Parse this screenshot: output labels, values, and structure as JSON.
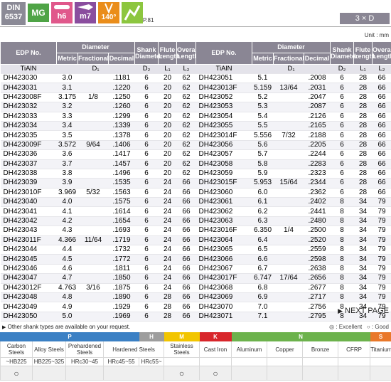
{
  "header": {
    "standard": [
      "DIN",
      "6537"
    ],
    "material_badge": "MG",
    "shank_tolerance": "h6",
    "hole_tolerance": "m7",
    "point_angle": "140°",
    "page_ref": "P.81",
    "length_ratio": "3 × D",
    "badge_colors": {
      "standard": "#8b8a96",
      "material": "#4fa446",
      "shank": "#e0588b",
      "hole": "#8a4d9e",
      "angle": "#ea8d1a",
      "icon": "#8cc63f"
    }
  },
  "unit": "Unit : mm",
  "table": {
    "columns": {
      "edp": "EDP No.",
      "diameter": "Diameter",
      "metric": "Metric",
      "fractional": "Fractional",
      "decimal": "Decimal",
      "shank": "Shank Diameter",
      "flute": "Flute Length",
      "overall": "Overall Length",
      "coating": "TiAlN",
      "d1": "D₁",
      "d2": "D₂",
      "l1": "L₁",
      "l2": "L₂"
    },
    "left_rows": [
      [
        "DH423030",
        "3.0",
        null,
        ".1181",
        "6",
        "20",
        "62"
      ],
      [
        "DH423031",
        "3.1",
        null,
        ".1220",
        "6",
        "20",
        "62"
      ],
      [
        "DH423008F",
        "3.175",
        "1/8",
        ".1250",
        "6",
        "20",
        "62"
      ],
      [
        "DH423032",
        "3.2",
        null,
        ".1260",
        "6",
        "20",
        "62"
      ],
      [
        "DH423033",
        "3.3",
        null,
        ".1299",
        "6",
        "20",
        "62"
      ],
      [
        "DH423034",
        "3.4",
        null,
        ".1339",
        "6",
        "20",
        "62"
      ],
      [
        "DH423035",
        "3.5",
        null,
        ".1378",
        "6",
        "20",
        "62"
      ],
      [
        "DH423009F",
        "3.572",
        "9/64",
        ".1406",
        "6",
        "20",
        "62"
      ],
      [
        "DH423036",
        "3.6",
        null,
        ".1417",
        "6",
        "20",
        "62"
      ],
      [
        "DH423037",
        "3.7",
        null,
        ".1457",
        "6",
        "20",
        "62"
      ],
      [
        "DH423038",
        "3.8",
        null,
        ".1496",
        "6",
        "20",
        "62"
      ],
      [
        "DH423039",
        "3.9",
        null,
        ".1535",
        "6",
        "24",
        "66"
      ],
      [
        "DH423010F",
        "3.969",
        "5/32",
        ".1563",
        "6",
        "24",
        "66"
      ],
      [
        "DH423040",
        "4.0",
        null,
        ".1575",
        "6",
        "24",
        "66"
      ],
      [
        "DH423041",
        "4.1",
        null,
        ".1614",
        "6",
        "24",
        "66"
      ],
      [
        "DH423042",
        "4.2",
        null,
        ".1654",
        "6",
        "24",
        "66"
      ],
      [
        "DH423043",
        "4.3",
        null,
        ".1693",
        "6",
        "24",
        "66"
      ],
      [
        "DH423011F",
        "4.366",
        "11/64",
        ".1719",
        "6",
        "24",
        "66"
      ],
      [
        "DH423044",
        "4.4",
        null,
        ".1732",
        "6",
        "24",
        "66"
      ],
      [
        "DH423045",
        "4.5",
        null,
        ".1772",
        "6",
        "24",
        "66"
      ],
      [
        "DH423046",
        "4.6",
        null,
        ".1811",
        "6",
        "24",
        "66"
      ],
      [
        "DH423047",
        "4.7",
        null,
        ".1850",
        "6",
        "24",
        "66"
      ],
      [
        "DH423012F",
        "4.763",
        "3/16",
        ".1875",
        "6",
        "24",
        "66"
      ],
      [
        "DH423048",
        "4.8",
        null,
        ".1890",
        "6",
        "28",
        "66"
      ],
      [
        "DH423049",
        "4.9",
        null,
        ".1929",
        "6",
        "28",
        "66"
      ],
      [
        "DH423050",
        "5.0",
        null,
        ".1969",
        "6",
        "28",
        "66"
      ]
    ],
    "right_rows": [
      [
        "DH423051",
        "5.1",
        null,
        ".2008",
        "6",
        "28",
        "66"
      ],
      [
        "DH423013F",
        "5.159",
        "13/64",
        ".2031",
        "6",
        "28",
        "66"
      ],
      [
        "DH423052",
        "5.2",
        null,
        ".2047",
        "6",
        "28",
        "66"
      ],
      [
        "DH423053",
        "5.3",
        null,
        ".2087",
        "6",
        "28",
        "66"
      ],
      [
        "DH423054",
        "5.4",
        null,
        ".2126",
        "6",
        "28",
        "66"
      ],
      [
        "DH423055",
        "5.5",
        null,
        ".2165",
        "6",
        "28",
        "66"
      ],
      [
        "DH423014F",
        "5.556",
        "7/32",
        ".2188",
        "6",
        "28",
        "66"
      ],
      [
        "DH423056",
        "5.6",
        null,
        ".2205",
        "6",
        "28",
        "66"
      ],
      [
        "DH423057",
        "5.7",
        null,
        ".2244",
        "6",
        "28",
        "66"
      ],
      [
        "DH423058",
        "5.8",
        null,
        ".2283",
        "6",
        "28",
        "66"
      ],
      [
        "DH423059",
        "5.9",
        null,
        ".2323",
        "6",
        "28",
        "66"
      ],
      [
        "DH423015F",
        "5.953",
        "15/64",
        ".2344",
        "6",
        "28",
        "66"
      ],
      [
        "DH423060",
        "6.0",
        null,
        ".2362",
        "6",
        "28",
        "66"
      ],
      [
        "DH423061",
        "6.1",
        null,
        ".2402",
        "8",
        "34",
        "79"
      ],
      [
        "DH423062",
        "6.2",
        null,
        ".2441",
        "8",
        "34",
        "79"
      ],
      [
        "DH423063",
        "6.3",
        null,
        ".2480",
        "8",
        "34",
        "79"
      ],
      [
        "DH423016F",
        "6.350",
        "1/4",
        ".2500",
        "8",
        "34",
        "79"
      ],
      [
        "DH423064",
        "6.4",
        null,
        ".2520",
        "8",
        "34",
        "79"
      ],
      [
        "DH423065",
        "6.5",
        null,
        ".2559",
        "8",
        "34",
        "79"
      ],
      [
        "DH423066",
        "6.6",
        null,
        ".2598",
        "8",
        "34",
        "79"
      ],
      [
        "DH423067",
        "6.7",
        null,
        ".2638",
        "8",
        "34",
        "79"
      ],
      [
        "DH423017F",
        "6.747",
        "17/64",
        ".2656",
        "8",
        "34",
        "79"
      ],
      [
        "DH423068",
        "6.8",
        null,
        ".2677",
        "8",
        "34",
        "79"
      ],
      [
        "DH423069",
        "6.9",
        null,
        ".2717",
        "8",
        "34",
        "79"
      ],
      [
        "DH423070",
        "7.0",
        null,
        ".2756",
        "8",
        "34",
        "79"
      ],
      [
        "DH423071",
        "7.1",
        null,
        ".2795",
        "8",
        "34",
        "79"
      ]
    ]
  },
  "next_page": "NEXT PAGE",
  "note": "Other shank types are available on your request.",
  "legend": [
    "◎ : Excellent",
    "○ : Good"
  ],
  "materials": {
    "groups": [
      {
        "label": "P",
        "color": "#3b80c4"
      },
      {
        "label": "H",
        "color": "#9d9d9d"
      },
      {
        "label": "M",
        "color": "#f2c500"
      },
      {
        "label": "K",
        "color": "#d8262b"
      },
      {
        "label": "N",
        "color": "#6cb24c"
      },
      {
        "label": "S",
        "color": "#e9782a"
      }
    ],
    "classes": [
      {
        "name": "Carbon Steels",
        "hardness": [
          "~HB225"
        ],
        "rating": "○"
      },
      {
        "name": "Alloy Steels",
        "hardness": [
          "HB225~325"
        ],
        "rating": null
      },
      {
        "name": "Prehardened Steels",
        "hardness": [
          "HRc30~45"
        ],
        "rating": null
      },
      {
        "name": "Hardened Steels",
        "hardness": [
          "HRc45~55",
          "HRc55~"
        ],
        "rating": null
      },
      {
        "name": "Stainless Steels",
        "hardness": [],
        "rating": "○"
      },
      {
        "name": "Cast Iron",
        "hardness": [],
        "rating": "○"
      },
      {
        "name": "Aluminum",
        "hardness": [],
        "rating": null
      },
      {
        "name": "Copper",
        "hardness": [],
        "rating": null
      },
      {
        "name": "Bronze",
        "hardness": [],
        "rating": null
      },
      {
        "name": "CFRP",
        "hardness": [],
        "rating": null
      },
      {
        "name": "Titanium",
        "hardness": [],
        "rating": null
      }
    ]
  }
}
